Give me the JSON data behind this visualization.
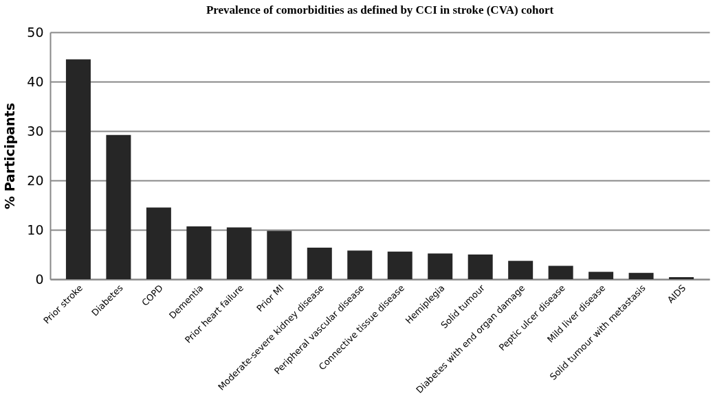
{
  "chart_data": {
    "type": "bar",
    "title": "Prevalence of comorbidities as defined by CCI in stroke (CVA) cohort",
    "ylabel": "% Participants",
    "categories": [
      "Prior stroke",
      "Diabetes",
      "COPD",
      "Dementia",
      "Prior heart failure",
      "Prior MI",
      "Moderate-severe  kidney disease",
      "Peripheral vascular disease",
      "Connective tissue disease",
      "Hemiplegia",
      "Solid tumour",
      "Diabetes with end organ damage",
      "Peptic ulcer disease",
      "Mild liver disease",
      "Solid tumour with metastasis",
      "AIDS"
    ],
    "values": [
      44.5,
      29.2,
      14.5,
      10.7,
      10.5,
      9.8,
      6.4,
      5.8,
      5.6,
      5.2,
      5.0,
      3.7,
      2.7,
      1.5,
      1.3,
      0.4
    ],
    "color": "#262626",
    "ylim": [
      0,
      50
    ],
    "yticks": [
      0,
      10,
      20,
      30,
      40,
      50
    ],
    "grid": "y"
  }
}
